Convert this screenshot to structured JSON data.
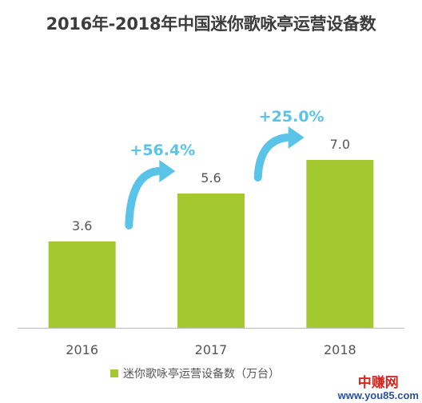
{
  "chart_data": {
    "type": "bar",
    "title": "2016年-2018年中国迷你歌咏亭运营设备数",
    "categories": [
      "2016",
      "2017",
      "2018"
    ],
    "series": [
      {
        "name": "迷你歌咏亭运营设备数（万台）",
        "values": [
          3.6,
          5.6,
          7.0
        ]
      }
    ],
    "data_labels": [
      "3.6",
      "5.6",
      "7.0"
    ],
    "growth_annotations": [
      {
        "from": "2016",
        "to": "2017",
        "label": "+56.4%"
      },
      {
        "from": "2017",
        "to": "2018",
        "label": "+25.0%"
      }
    ],
    "ylim": [
      0,
      9
    ],
    "grid": false,
    "legend_position": "bottom",
    "colors": {
      "bar": "#a3c830",
      "arrow": "#5ac3e8",
      "growth_text": "#5ac3e8",
      "axis": "#bfbfbf",
      "label": "#555555"
    }
  },
  "watermark": {
    "top": "中赚网",
    "bottom": "www.you85.com"
  }
}
